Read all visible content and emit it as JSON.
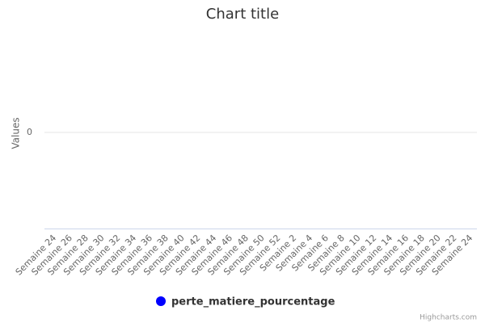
{
  "chart_data": {
    "type": "line",
    "title": "Chart title",
    "y_label": "Values",
    "categories": [
      "Semaine 24",
      "Semaine 26",
      "Semaine 28",
      "Semaine 30",
      "Semaine 32",
      "Semaine 34",
      "Semaine 36",
      "Semaine 38",
      "Semaine 40",
      "Semaine 42",
      "Semaine 44",
      "Semaine 46",
      "Semaine 48",
      "Semaine 50",
      "Semaine 52",
      "Semaine 2",
      "Semaine 4",
      "Semaine 6",
      "Semaine 8",
      "Semaine 10",
      "Semaine 12",
      "Semaine 14",
      "Semaine 16",
      "Semaine 18",
      "Semaine 20",
      "Semaine 22",
      "Semaine 24"
    ],
    "series": [
      {
        "name": "perte_matiere_pourcentage",
        "color": "#0000ff",
        "values": [
          null,
          null,
          null,
          null,
          null,
          null,
          null,
          null,
          null,
          null,
          null,
          null,
          null,
          null,
          null,
          null,
          null,
          null,
          null,
          null,
          null,
          null,
          null,
          null,
          null,
          null,
          null
        ]
      }
    ],
    "ylim": [
      -1,
      1
    ],
    "yticks": [
      0
    ],
    "grid": true,
    "credits": "Highcharts.com"
  }
}
